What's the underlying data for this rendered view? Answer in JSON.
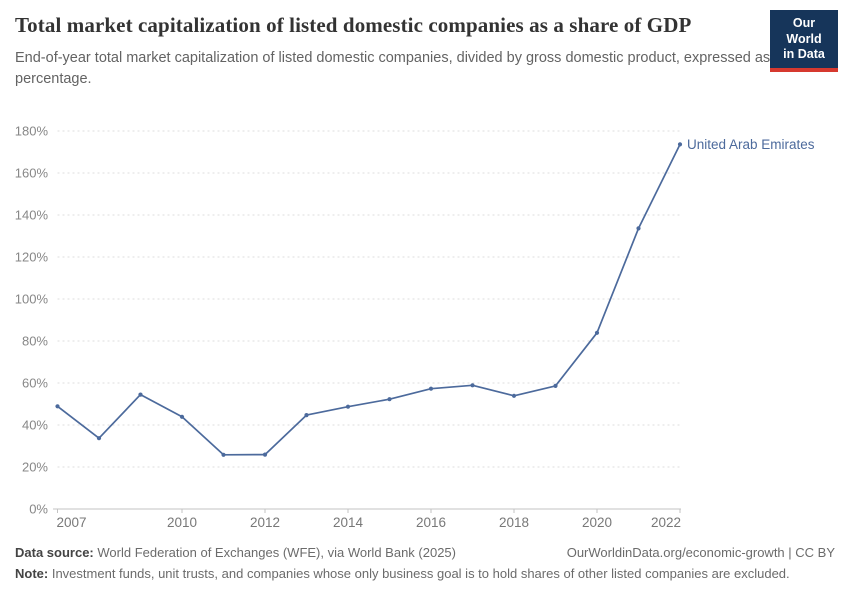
{
  "header": {
    "title": "Total market capitalization of listed domestic companies as a share of GDP",
    "subtitle": "End-of-year total market capitalization of listed domestic companies, divided by gross domestic product, expressed as a percentage.",
    "logo": {
      "line1": "Our World",
      "line2": "in Data",
      "bg_color": "#16355a",
      "accent_color": "#d6392f"
    }
  },
  "chart_data": {
    "type": "line",
    "title": "Total market capitalization of listed domestic companies as a share of GDP",
    "xlabel": "",
    "ylabel": "",
    "x": [
      2007,
      2008,
      2009,
      2010,
      2011,
      2012,
      2013,
      2014,
      2015,
      2016,
      2017,
      2018,
      2019,
      2020,
      2021,
      2022
    ],
    "series": [
      {
        "name": "United Arab Emirates",
        "color": "#4C6A9C",
        "values": [
          48.9,
          33.7,
          54.5,
          43.9,
          25.8,
          25.9,
          44.7,
          48.7,
          52.3,
          57.3,
          58.9,
          53.9,
          58.6,
          83.9,
          133.6,
          173.6
        ]
      }
    ],
    "end_label": "United Arab Emirates",
    "xlim": [
      2007,
      2022
    ],
    "ylim": [
      0,
      180
    ],
    "x_ticks": [
      2007,
      2010,
      2012,
      2014,
      2016,
      2018,
      2020,
      2022
    ],
    "y_ticks": [
      0,
      20,
      40,
      60,
      80,
      100,
      120,
      140,
      160,
      180
    ],
    "y_tick_suffix": "%",
    "grid": "horizontal-dashed",
    "legend_position": "end-of-line",
    "marker": "dot"
  },
  "footer": {
    "data_source_label": "Data source:",
    "data_source": "World Federation of Exchanges (WFE), via World Bank (2025)",
    "link": "OurWorldinData.org/economic-growth | CC BY",
    "note_label": "Note:",
    "note": "Investment funds, unit trusts, and companies whose only business goal is to hold shares of other listed companies are excluded."
  },
  "colors": {
    "title": "#333333",
    "subtitle": "#636363",
    "axis_label": "#878787",
    "x_axis_label": "#787878",
    "gridline": "#dedede",
    "axis_line": "#c3c3c3",
    "series": "#4C6A9C"
  }
}
